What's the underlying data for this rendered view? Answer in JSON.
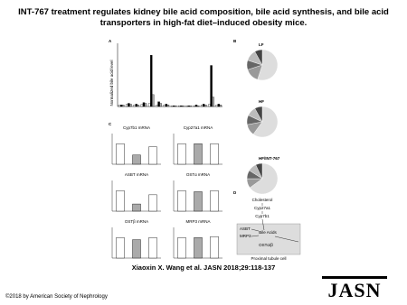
{
  "title": "INT-767 treatment regulates kidney bile acid composition, bile acid synthesis, and bile acid transporters in high-fat diet–induced obesity mice.",
  "citation": "Xiaoxin X. Wang et al. JASN 2018;29:118-137",
  "copyright": "©2018 by American Society of Nephrology",
  "logo": "JASN",
  "figure": {
    "panel_a": {
      "label": "A",
      "y_label": "Normalized bile acid level",
      "ylim": [
        0,
        8
      ],
      "series": [
        {
          "color": "#ffffff",
          "values": [
            0.2,
            0.3,
            0.2,
            0.3,
            0.4,
            0.2,
            0.2,
            0.1,
            0.1,
            0.1,
            0.1,
            0.2,
            0.3,
            0.2
          ]
        },
        {
          "color": "#000000",
          "values": [
            0.2,
            0.4,
            0.3,
            0.5,
            6.5,
            0.6,
            0.3,
            0.1,
            0.1,
            0.1,
            0.2,
            0.3,
            5.2,
            0.3
          ]
        },
        {
          "color": "#aaaaaa",
          "values": [
            0.2,
            0.3,
            0.2,
            0.4,
            1.5,
            0.4,
            0.2,
            0.1,
            0.1,
            0.1,
            0.1,
            0.2,
            1.2,
            0.2
          ]
        }
      ]
    },
    "panel_b": {
      "label": "B",
      "colors": [
        "#dddddd",
        "#999999",
        "#666666",
        "#bbbbbb",
        "#444444"
      ],
      "pies": [
        {
          "title": "LF",
          "values": [
            55,
            15,
            10,
            12,
            8
          ]
        },
        {
          "title": "HF",
          "values": [
            60,
            12,
            10,
            10,
            8
          ]
        },
        {
          "title": "HF/INT-767",
          "values": [
            65,
            10,
            9,
            9,
            7
          ]
        }
      ]
    },
    "panel_c": {
      "label": "C",
      "ylim": [
        0,
        1.5
      ],
      "colors": [
        "#ffffff",
        "#aaaaaa",
        "#ffffff"
      ],
      "charts": [
        {
          "title": "Cyp7b1 mRNA",
          "values": [
            1,
            0.45,
            0.85
          ]
        },
        {
          "title": "Cyp27a1 mRNA",
          "values": [
            1,
            1,
            1
          ]
        },
        {
          "title": "ASBT mRNA",
          "values": [
            1,
            0.35,
            0.8
          ]
        },
        {
          "title": "OSTα mRNA",
          "values": [
            1,
            0.95,
            1
          ]
        },
        {
          "title": "OSTβ mRNA",
          "values": [
            1,
            0.9,
            1
          ]
        },
        {
          "title": "MRP3 mRNA",
          "values": [
            1,
            1,
            1.05
          ]
        }
      ]
    },
    "panel_d": {
      "label": "D",
      "cholesterol": "Cholesterol",
      "enzyme1": "Cyp27a1",
      "enzyme2": "Cyp7b1",
      "bile_acids": "Bile Acids",
      "asbt": "ASBT",
      "mrp3": "MRP3",
      "ost": "OSTα/β",
      "cell": "Proximal tubule cell"
    }
  }
}
